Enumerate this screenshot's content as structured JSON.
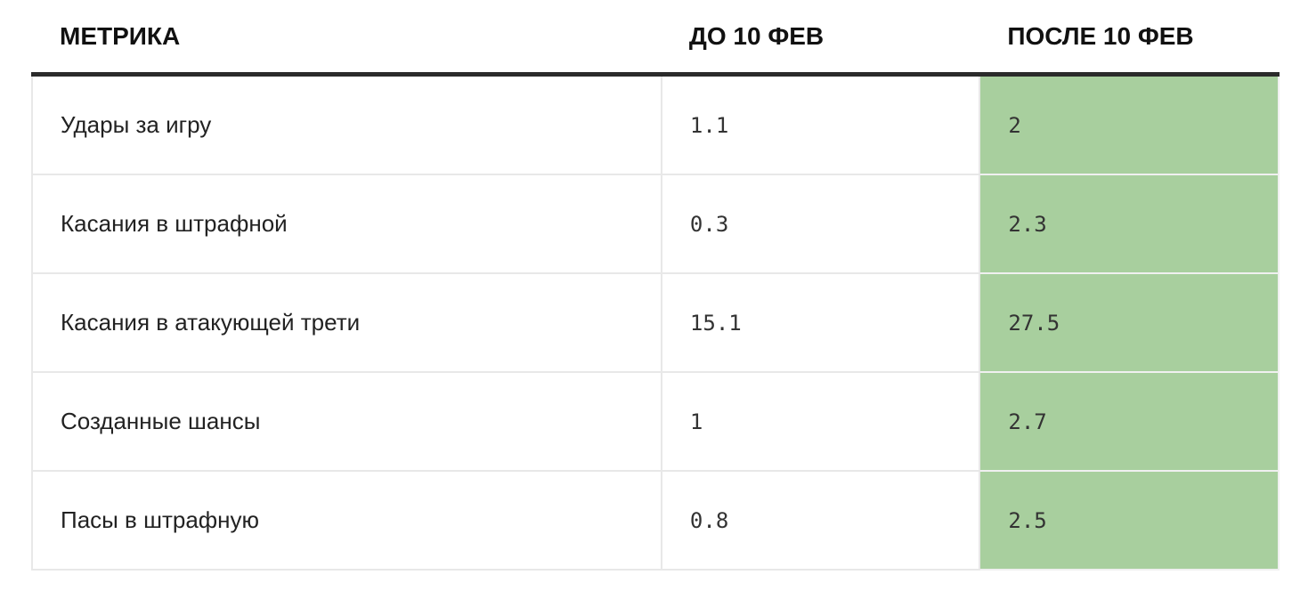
{
  "table": {
    "header": [
      "МЕТРИКА",
      "ДО 10 ФЕВ",
      "ПОСЛЕ 10 ФЕВ"
    ],
    "rows": [
      [
        "Удары за игру",
        "1.1",
        "2"
      ],
      [
        "Касания в штрафной",
        "0.3",
        "2.3"
      ],
      [
        "Касания в атакующей трети",
        "15.1",
        "27.5"
      ],
      [
        "Созданные шансы",
        "1",
        "2.7"
      ],
      [
        "Пасы в штрафную",
        "0.8",
        "2.5"
      ]
    ]
  }
}
